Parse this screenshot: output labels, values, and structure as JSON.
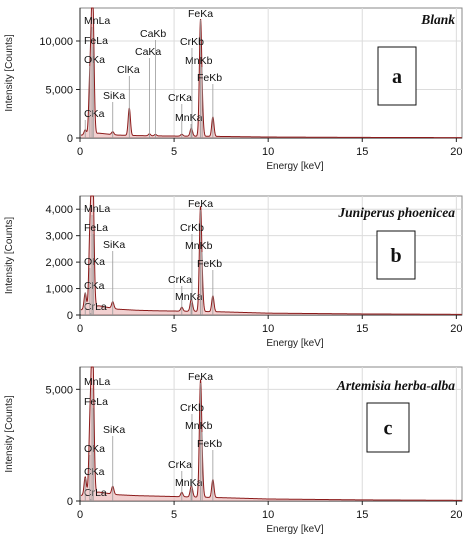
{
  "chart_data": [
    {
      "type": "line",
      "title": "Blank",
      "panel_letter": "a",
      "xlabel": "Energy [keV]",
      "ylabel": "Intensity [Counts]",
      "xlim": [
        0,
        20.3
      ],
      "ylim": [
        0,
        13400
      ],
      "x_ticks": [
        0,
        5,
        10,
        15,
        20
      ],
      "y_ticks": [
        0,
        5000,
        10000
      ],
      "y_tick_labels": [
        "0",
        "5,000",
        "10,000"
      ],
      "grid": true,
      "series_color": "#8b1a1a",
      "peaks": [
        {
          "label": "CKa",
          "x": 0.277,
          "y": 500
        },
        {
          "label": "OKa",
          "x": 0.525,
          "y": 5500
        },
        {
          "label": "MnLa",
          "x": 0.637,
          "y": 9800
        },
        {
          "label": "FeLa",
          "x": 0.705,
          "y": 7800
        },
        {
          "label": "SiKa",
          "x": 1.74,
          "y": 300
        },
        {
          "label": "ClKa",
          "x": 2.62,
          "y": 2800
        },
        {
          "label": "CaKa",
          "x": 3.69,
          "y": 200
        },
        {
          "label": "CaKb",
          "x": 4.01,
          "y": 150
        },
        {
          "label": "CrKa",
          "x": 5.41,
          "y": 200
        },
        {
          "label": "MnKa",
          "x": 5.9,
          "y": 600
        },
        {
          "label": "FeKa",
          "x": 6.4,
          "y": 11200
        },
        {
          "label": "MnKb",
          "x": 6.49,
          "y": 2500
        },
        {
          "label": "CrKb",
          "x": 5.95,
          "y": 300
        },
        {
          "label": "FeKb",
          "x": 7.06,
          "y": 2000
        }
      ],
      "background": [
        [
          0.1,
          300
        ],
        [
          1.0,
          500
        ],
        [
          2.0,
          300
        ],
        [
          3.0,
          250
        ],
        [
          4.0,
          220
        ],
        [
          5.0,
          200
        ],
        [
          6.0,
          190
        ],
        [
          7.5,
          160
        ],
        [
          10,
          100
        ],
        [
          15,
          60
        ],
        [
          20,
          40
        ]
      ]
    },
    {
      "type": "line",
      "title": "Juniperus phoenicea",
      "panel_letter": "b",
      "xlabel": "Energy [keV]",
      "ylabel": "Intensity [Counts]",
      "xlim": [
        0,
        20.3
      ],
      "ylim": [
        0,
        4500
      ],
      "x_ticks": [
        0,
        5,
        10,
        15,
        20
      ],
      "y_ticks": [
        0,
        1000,
        2000,
        3000,
        4000
      ],
      "y_tick_labels": [
        "0",
        "1,000",
        "2,000",
        "3,000",
        "4,000"
      ],
      "grid": true,
      "series_color": "#8b1a1a",
      "peaks": [
        {
          "label": "CrLa",
          "x": 0.573,
          "y": 400
        },
        {
          "label": "CKa",
          "x": 0.277,
          "y": 600
        },
        {
          "label": "OKa",
          "x": 0.525,
          "y": 2400
        },
        {
          "label": "MnLa",
          "x": 0.637,
          "y": 3400
        },
        {
          "label": "FeLa",
          "x": 0.705,
          "y": 2900
        },
        {
          "label": "SiKa",
          "x": 1.74,
          "y": 250
        },
        {
          "label": "CrKa",
          "x": 5.41,
          "y": 150
        },
        {
          "label": "MnKa",
          "x": 5.9,
          "y": 300
        },
        {
          "label": "CrKb",
          "x": 5.95,
          "y": 200
        },
        {
          "label": "FeKa",
          "x": 6.4,
          "y": 3700
        },
        {
          "label": "MnKb",
          "x": 6.49,
          "y": 800
        },
        {
          "label": "FeKb",
          "x": 7.06,
          "y": 600
        }
      ],
      "background": [
        [
          0.1,
          200
        ],
        [
          1.0,
          350
        ],
        [
          2.0,
          220
        ],
        [
          3.0,
          180
        ],
        [
          4.0,
          160
        ],
        [
          5.0,
          150
        ],
        [
          6.0,
          140
        ],
        [
          7.5,
          120
        ],
        [
          10,
          70
        ],
        [
          15,
          40
        ],
        [
          20,
          25
        ]
      ]
    },
    {
      "type": "line",
      "title": "Artemisia herba-alba",
      "panel_letter": "c",
      "xlabel": "Energy [keV]",
      "ylabel": "Intensity [Counts]",
      "xlim": [
        0,
        20.3
      ],
      "ylim": [
        0,
        6000
      ],
      "x_ticks": [
        0,
        5,
        10,
        15,
        20
      ],
      "y_ticks": [
        0,
        5000
      ],
      "y_tick_labels": [
        "0",
        "5,000"
      ],
      "grid": true,
      "series_color": "#8b1a1a",
      "peaks": [
        {
          "label": "CrLa",
          "x": 0.573,
          "y": 500
        },
        {
          "label": "CKa",
          "x": 0.277,
          "y": 800
        },
        {
          "label": "OKa",
          "x": 0.525,
          "y": 2600
        },
        {
          "label": "MnLa",
          "x": 0.637,
          "y": 4200
        },
        {
          "label": "FeLa",
          "x": 0.705,
          "y": 3500
        },
        {
          "label": "SiKa",
          "x": 1.74,
          "y": 350
        },
        {
          "label": "CrKa",
          "x": 5.41,
          "y": 200
        },
        {
          "label": "MnKa",
          "x": 5.9,
          "y": 300
        },
        {
          "label": "CrKb",
          "x": 5.95,
          "y": 250
        },
        {
          "label": "FeKa",
          "x": 6.4,
          "y": 4900
        },
        {
          "label": "MnKb",
          "x": 6.49,
          "y": 1000
        },
        {
          "label": "FeKb",
          "x": 7.06,
          "y": 800
        }
      ],
      "background": [
        [
          0.1,
          250
        ],
        [
          1.0,
          400
        ],
        [
          2.0,
          280
        ],
        [
          3.0,
          240
        ],
        [
          4.0,
          220
        ],
        [
          5.0,
          200
        ],
        [
          6.0,
          180
        ],
        [
          7.5,
          150
        ],
        [
          10,
          90
        ],
        [
          15,
          50
        ],
        [
          20,
          30
        ]
      ]
    }
  ]
}
